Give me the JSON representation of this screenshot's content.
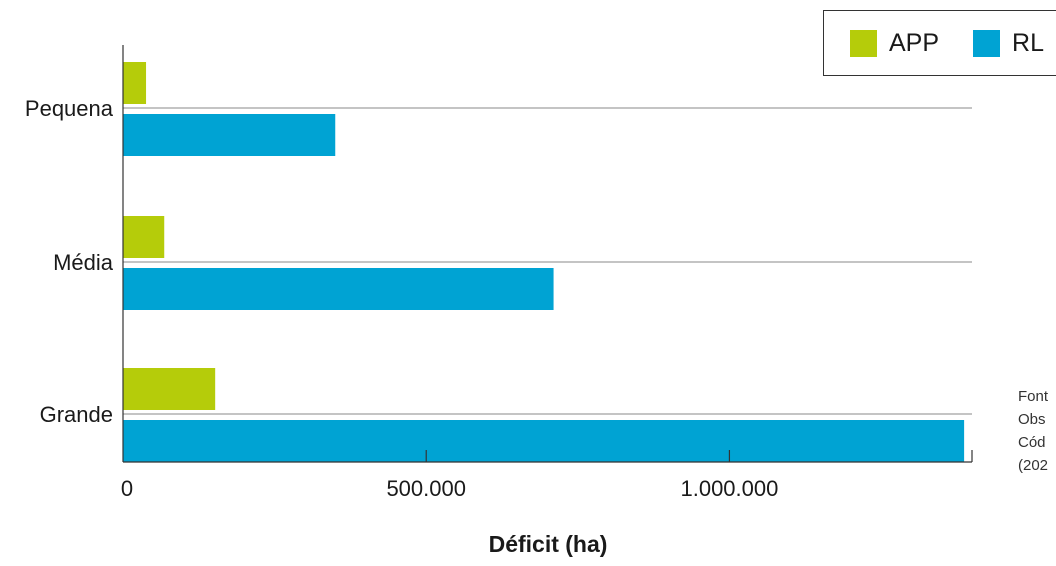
{
  "chart_data": {
    "type": "bar",
    "orientation": "horizontal",
    "categories": [
      "Pequena",
      "Média",
      "Grande"
    ],
    "series": [
      {
        "name": "APP",
        "color": "#b5cc0a",
        "values": [
          38000,
          68000,
          152000
        ]
      },
      {
        "name": "RL",
        "color": "#00a3d3",
        "values": [
          350000,
          710000,
          1387000
        ]
      }
    ],
    "xlabel": "Déficit (ha)",
    "xlim": [
      0,
      1400000
    ],
    "xticks": [
      0,
      500000,
      1000000
    ],
    "xtick_labels": [
      "0",
      "500.000",
      "1.000.000"
    ],
    "grid": "horizontal lines between category groups",
    "legend_position": "top-right"
  },
  "source_note": [
    "Font",
    "Obs",
    "Cód",
    "(202"
  ]
}
